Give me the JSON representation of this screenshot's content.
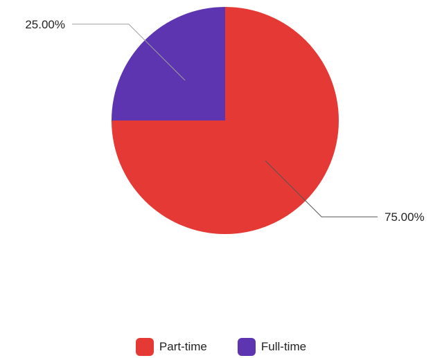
{
  "chart_data": {
    "type": "pie",
    "slices": [
      {
        "name": "Part-time",
        "value": 75.0,
        "label": "75.00%",
        "color": "#e53935"
      },
      {
        "name": "Full-time",
        "value": 25.0,
        "label": "25.00%",
        "color": "#5e35b1"
      }
    ],
    "legend_position": "bottom"
  }
}
